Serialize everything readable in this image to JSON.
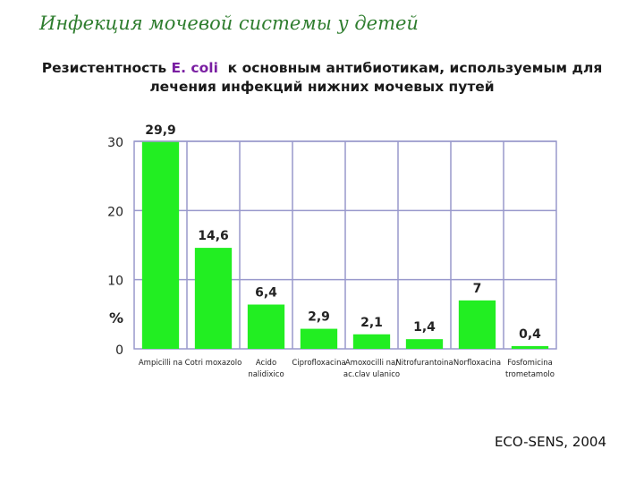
{
  "slide": {
    "title": "Инфекция мочевой системы у детей",
    "subtitle_part1": "Резистентность ",
    "subtitle_organism": "E. coli",
    "subtitle_part2": "  к основным антибиотикам, используемым для",
    "subtitle_line2": "лечения инфекций нижних мочевых путей",
    "source": "ECO-SENS, 2004"
  },
  "colors": {
    "bar": "#22ee22",
    "grid": "#9999cc",
    "text": "#222222"
  },
  "chart_data": {
    "type": "bar",
    "categories": [
      [
        "Ampicilli na"
      ],
      [
        "Cotri moxazolo"
      ],
      [
        "Acido",
        "nalidixico"
      ],
      [
        "Ciprofloxacina"
      ],
      [
        "Amoxocilli na/",
        "ac.clav ulanico"
      ],
      [
        "Nitrofurantoina"
      ],
      [
        "Norfloxacina"
      ],
      [
        "Fosfomicina",
        "trometamolo"
      ]
    ],
    "values": [
      29.9,
      14.6,
      6.4,
      2.9,
      2.1,
      1.4,
      7,
      0.4
    ],
    "value_labels": [
      "29,9",
      "14,6",
      "6,4",
      "2,9",
      "2,1",
      "1,4",
      "7",
      "0,4"
    ],
    "yticks": [
      "0",
      "10",
      "20",
      "30"
    ],
    "ylabel": "%",
    "ylim": [
      0,
      30
    ],
    "grid": true
  }
}
